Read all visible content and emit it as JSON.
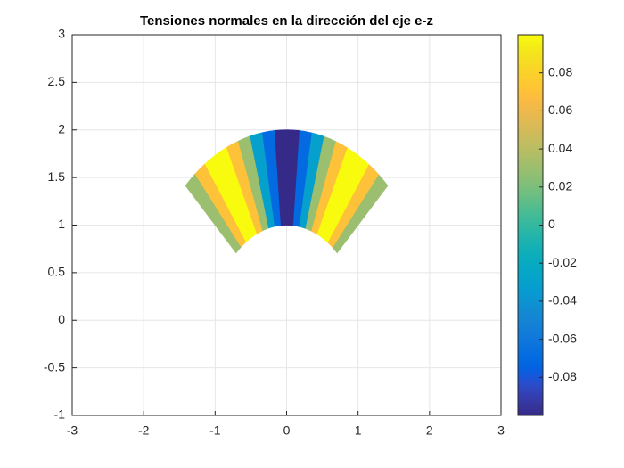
{
  "chart_data": {
    "type": "polar-sector-field",
    "title": "Tensiones normales en la dirección del eje e-z",
    "xlim": [
      -3,
      3
    ],
    "xticks": [
      -3,
      -2,
      -1,
      0,
      1,
      2,
      3
    ],
    "ylim": [
      -1,
      3
    ],
    "yticks": [
      -1,
      -0.5,
      0,
      0.5,
      1,
      1.5,
      2,
      2.5,
      3
    ],
    "grid": true,
    "radii": [
      1,
      2
    ],
    "theta": [
      45,
      50,
      55,
      60,
      65,
      70,
      75,
      80,
      85,
      90,
      95,
      100,
      105,
      110,
      115,
      120,
      125,
      130,
      135
    ],
    "values": [
      0.03,
      0.07,
      0.1,
      0.1,
      0.07,
      0.03,
      -0.03,
      -0.07,
      -0.1,
      -0.1,
      -0.07,
      -0.03,
      0.03,
      0.07,
      0.1,
      0.1,
      0.07,
      0.03
    ],
    "colormap": "parula",
    "clim": [
      -0.1,
      0.1
    ],
    "cticks": [
      -0.08,
      -0.06,
      -0.04,
      -0.02,
      0,
      0.02,
      0.04,
      0.06,
      0.08
    ]
  }
}
